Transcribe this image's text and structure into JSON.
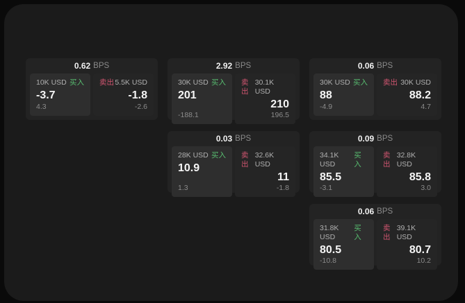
{
  "labels": {
    "bps_suffix": "BPS",
    "buy": "买入",
    "sell": "卖出"
  },
  "colors": {
    "page_background": "#0a0a0a",
    "panel_background": "#1b1b1b",
    "card_background": "#232323",
    "buy_panel_background": "#2e2e2e",
    "sell_panel_background": "#252525",
    "buy_accent": "#58bc70",
    "sell_accent": "#d05570"
  },
  "cards": [
    {
      "bps": "0.62",
      "buy": {
        "amount": "10K USD",
        "price": "-3.7",
        "delta": "4.3"
      },
      "sell": {
        "amount": "5.5K USD",
        "price": "-1.8",
        "delta": "-2.6"
      }
    },
    {
      "bps": "2.92",
      "buy": {
        "amount": "30K USD",
        "price": "201",
        "delta": "-188.1"
      },
      "sell": {
        "amount": "30.1K USD",
        "price": "210",
        "delta": "196.5"
      }
    },
    {
      "bps": "0.06",
      "buy": {
        "amount": "30K USD",
        "price": "88",
        "delta": "-4.9"
      },
      "sell": {
        "amount": "30K USD",
        "price": "88.2",
        "delta": "4.7"
      }
    },
    {
      "bps": "0.03",
      "buy": {
        "amount": "28K USD",
        "price": "10.9",
        "delta": "1.3"
      },
      "sell": {
        "amount": "32.6K USD",
        "price": "11",
        "delta": "-1.8"
      }
    },
    {
      "bps": "0.09",
      "buy": {
        "amount": "34.1K USD",
        "price": "85.5",
        "delta": "-3.1"
      },
      "sell": {
        "amount": "32.8K USD",
        "price": "85.8",
        "delta": "3.0"
      }
    },
    {
      "bps": "0.06",
      "buy": {
        "amount": "31.8K USD",
        "price": "80.5",
        "delta": "-10.8"
      },
      "sell": {
        "amount": "39.1K USD",
        "price": "80.7",
        "delta": "10.2"
      }
    }
  ]
}
